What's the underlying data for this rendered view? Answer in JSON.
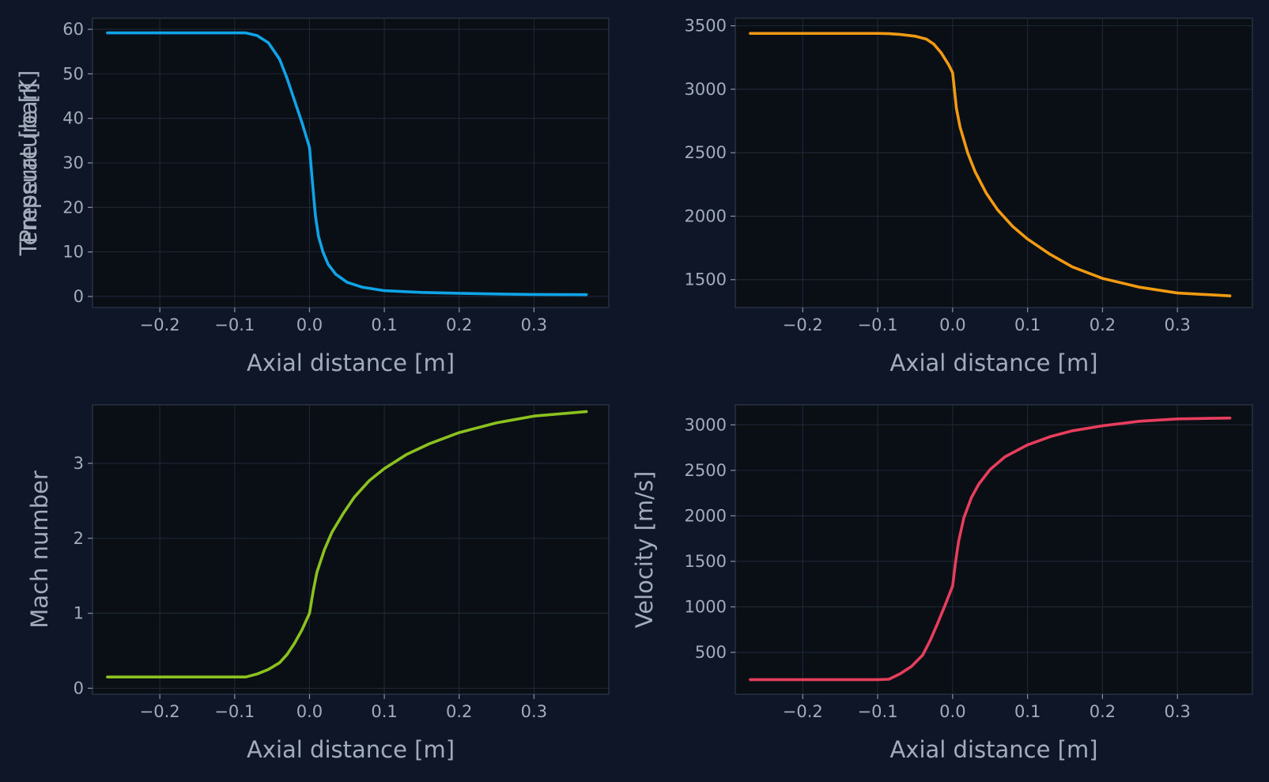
{
  "chart_data": [
    {
      "type": "line",
      "title": "",
      "xlabel": "Axial distance [m]",
      "ylabel": "Pressure [bar]",
      "xlim": [
        -0.29,
        0.4
      ],
      "ylim": [
        -2.5,
        62.5
      ],
      "xticks": [
        -0.2,
        -0.1,
        0.0,
        0.1,
        0.2,
        0.3
      ],
      "xtick_labels": [
        "−0.2",
        "−0.1",
        "0.0",
        "0.1",
        "0.2",
        "0.3"
      ],
      "yticks": [
        0,
        10,
        20,
        30,
        40,
        50,
        60
      ],
      "ytick_labels": [
        "0",
        "10",
        "20",
        "30",
        "40",
        "50",
        "60"
      ],
      "grid": true,
      "series": [
        {
          "color": "#0fa4e8",
          "x": [
            -0.27,
            -0.2,
            -0.1,
            -0.085,
            -0.07,
            -0.055,
            -0.04,
            -0.03,
            -0.02,
            -0.01,
            0.0,
            0.004,
            0.008,
            0.012,
            0.018,
            0.025,
            0.035,
            0.05,
            0.07,
            0.1,
            0.15,
            0.2,
            0.25,
            0.3,
            0.37
          ],
          "y": [
            59.2,
            59.2,
            59.2,
            59.2,
            58.6,
            57.0,
            53.3,
            49.0,
            44.0,
            39.0,
            33.5,
            25.5,
            18.0,
            13.5,
            10.0,
            7.2,
            5.0,
            3.2,
            2.1,
            1.3,
            0.9,
            0.7,
            0.55,
            0.45,
            0.4
          ]
        }
      ]
    },
    {
      "type": "line",
      "title": "",
      "xlabel": "Axial distance [m]",
      "ylabel": "Temperature [K]",
      "xlim": [
        -0.29,
        0.4
      ],
      "ylim": [
        1280,
        3560
      ],
      "xticks": [
        -0.2,
        -0.1,
        0.0,
        0.1,
        0.2,
        0.3
      ],
      "xtick_labels": [
        "−0.2",
        "−0.1",
        "0.0",
        "0.1",
        "0.2",
        "0.3"
      ],
      "yticks": [
        1500,
        2000,
        2500,
        3000,
        3500
      ],
      "ytick_labels": [
        "1500",
        "2000",
        "2500",
        "3000",
        "3500"
      ],
      "grid": true,
      "series": [
        {
          "color": "#f29b12",
          "x": [
            -0.27,
            -0.2,
            -0.1,
            -0.085,
            -0.07,
            -0.05,
            -0.035,
            -0.025,
            -0.015,
            -0.005,
            0.0,
            0.005,
            0.01,
            0.02,
            0.03,
            0.045,
            0.06,
            0.08,
            0.1,
            0.13,
            0.16,
            0.2,
            0.25,
            0.3,
            0.37
          ],
          "y": [
            3440,
            3440,
            3440,
            3438,
            3432,
            3418,
            3395,
            3355,
            3285,
            3190,
            3130,
            2850,
            2700,
            2500,
            2350,
            2180,
            2050,
            1920,
            1820,
            1700,
            1600,
            1510,
            1440,
            1395,
            1372
          ]
        }
      ]
    },
    {
      "type": "line",
      "title": "",
      "xlabel": "Axial distance [m]",
      "ylabel": "Mach number",
      "xlim": [
        -0.29,
        0.4
      ],
      "ylim": [
        -0.08,
        3.78
      ],
      "xticks": [
        -0.2,
        -0.1,
        0.0,
        0.1,
        0.2,
        0.3
      ],
      "xtick_labels": [
        "−0.2",
        "−0.1",
        "0.0",
        "0.1",
        "0.2",
        "0.3"
      ],
      "yticks": [
        0,
        1,
        2,
        3
      ],
      "ytick_labels": [
        "0",
        "1",
        "2",
        "3"
      ],
      "grid": true,
      "series": [
        {
          "color": "#8cc21f",
          "x": [
            -0.27,
            -0.2,
            -0.1,
            -0.085,
            -0.07,
            -0.055,
            -0.04,
            -0.03,
            -0.02,
            -0.01,
            0.0,
            0.005,
            0.01,
            0.02,
            0.03,
            0.045,
            0.06,
            0.08,
            0.1,
            0.13,
            0.16,
            0.2,
            0.25,
            0.3,
            0.37
          ],
          "y": [
            0.15,
            0.15,
            0.15,
            0.15,
            0.19,
            0.25,
            0.34,
            0.45,
            0.6,
            0.78,
            1.0,
            1.3,
            1.55,
            1.85,
            2.08,
            2.33,
            2.55,
            2.77,
            2.93,
            3.12,
            3.26,
            3.41,
            3.54,
            3.63,
            3.69
          ]
        }
      ]
    },
    {
      "type": "line",
      "title": "",
      "xlabel": "Axial distance [m]",
      "ylabel": "Velocity [m/s]",
      "xlim": [
        -0.29,
        0.4
      ],
      "ylim": [
        40,
        3220
      ],
      "xticks": [
        -0.2,
        -0.1,
        0.0,
        0.1,
        0.2,
        0.3
      ],
      "xtick_labels": [
        "−0.2",
        "−0.1",
        "0.0",
        "0.1",
        "0.2",
        "0.3"
      ],
      "yticks": [
        500,
        1000,
        1500,
        2000,
        2500,
        3000
      ],
      "ytick_labels": [
        "500",
        "1000",
        "1500",
        "2000",
        "2500",
        "3000"
      ],
      "grid": true,
      "series": [
        {
          "color": "#e63e5c",
          "x": [
            -0.27,
            -0.2,
            -0.1,
            -0.085,
            -0.07,
            -0.055,
            -0.04,
            -0.03,
            -0.02,
            -0.01,
            0.0,
            0.004,
            0.008,
            0.015,
            0.025,
            0.035,
            0.05,
            0.07,
            0.1,
            0.13,
            0.16,
            0.2,
            0.25,
            0.3,
            0.37
          ],
          "y": [
            200,
            200,
            200,
            205,
            265,
            345,
            470,
            630,
            820,
            1020,
            1230,
            1500,
            1720,
            1980,
            2200,
            2350,
            2510,
            2650,
            2780,
            2870,
            2935,
            2990,
            3040,
            3065,
            3075
          ]
        }
      ]
    }
  ]
}
